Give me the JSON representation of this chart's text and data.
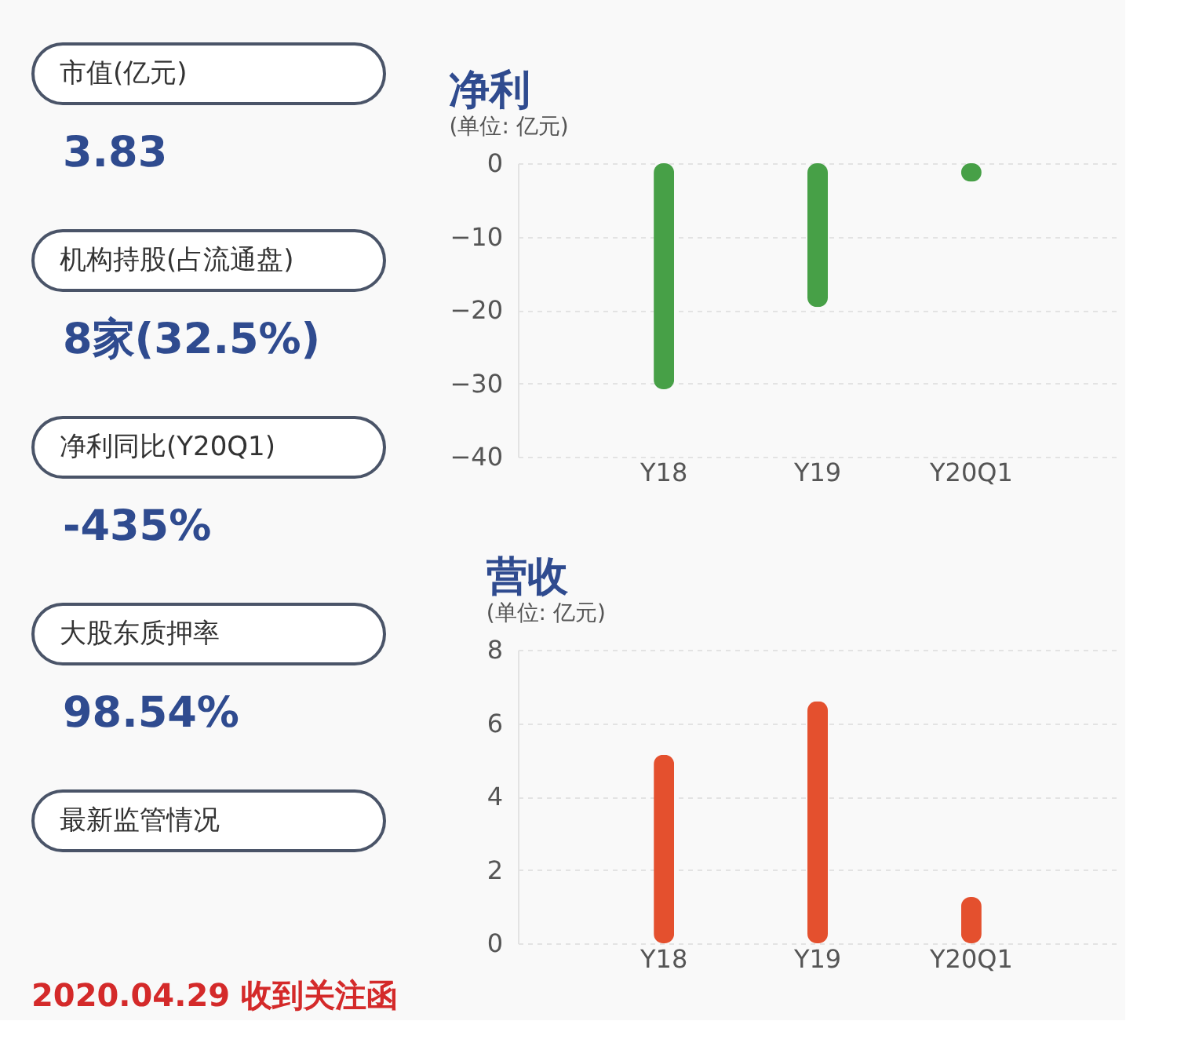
{
  "chart_data": [
    {
      "type": "other",
      "annotations": [
        "市值(亿元)",
        "3.83",
        "机构持股(占流通盘)",
        "8家(32.5%)",
        "净利同比(Y20Q1)",
        "-435%",
        "大股东质押率",
        "98.54%",
        "最新监管情况",
        "2020.04.29 收到关注函"
      ]
    },
    {
      "type": "bar",
      "title": "净利",
      "subtitle": "(单位: 亿元)",
      "categories": [
        "Y18",
        "Y19",
        "Y20Q1"
      ],
      "values": [
        -30.8,
        -19.6,
        -2.5
      ],
      "color": "#47a047",
      "ylim": [
        -40,
        0
      ],
      "yticks": [
        -40,
        -30,
        -20,
        -10,
        0
      ],
      "grid": "y",
      "legend": false
    },
    {
      "type": "bar",
      "title": "营收",
      "subtitle": "(单位: 亿元)",
      "categories": [
        "Y18",
        "Y19",
        "Y20Q1"
      ],
      "values": [
        5.14,
        6.6,
        1.26
      ],
      "color": "#e4502e",
      "ylim": [
        0,
        8
      ],
      "yticks": [
        0,
        2,
        4,
        6,
        8
      ],
      "grid": "y",
      "legend": false
    }
  ]
}
